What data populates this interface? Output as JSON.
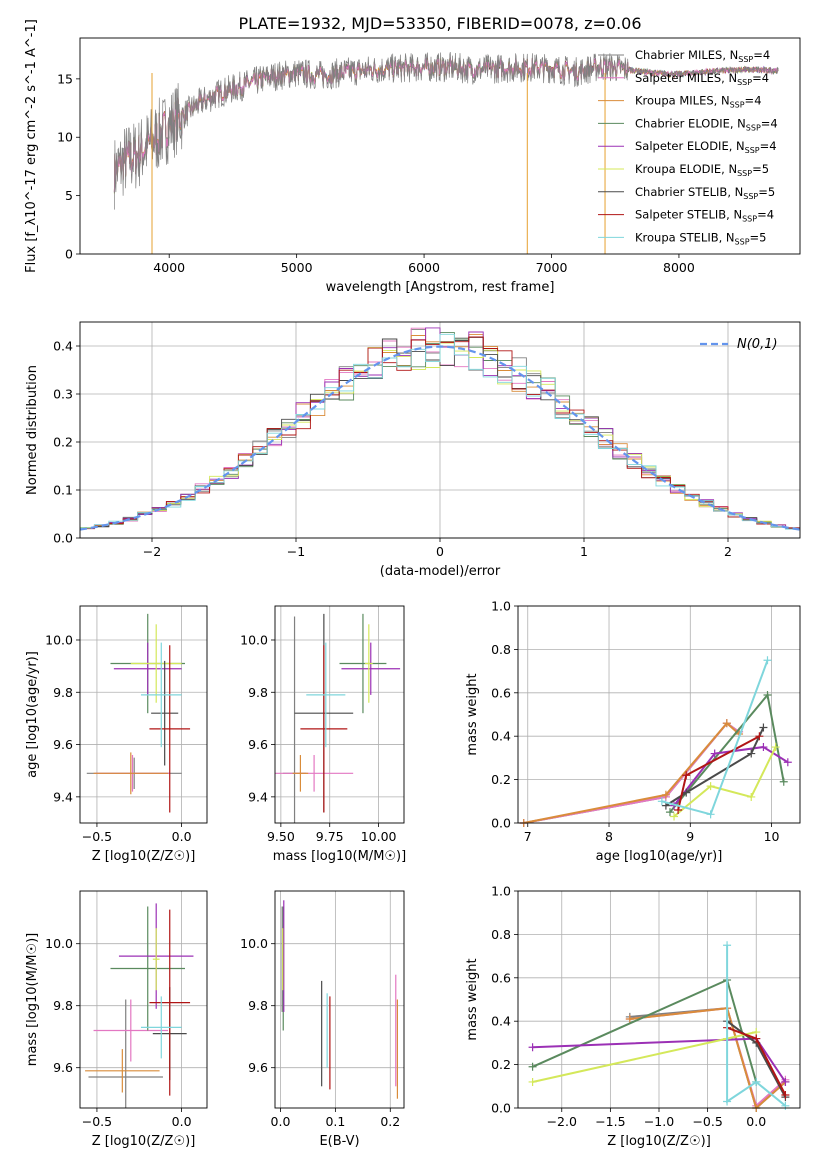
{
  "figure": {
    "title": "PLATE=1932, MJD=53350, FIBERID=0078, z=0.06"
  },
  "models": [
    {
      "name": "Chabrier MILES",
      "nssp": "4",
      "color": "#808080"
    },
    {
      "name": "Salpeter MILES",
      "nssp": "4",
      "color": "#e377c2"
    },
    {
      "name": "Kroupa MILES",
      "nssp": "4",
      "color": "#d98c3a"
    },
    {
      "name": "Chabrier ELODIE",
      "nssp": "4",
      "color": "#5a8a5e"
    },
    {
      "name": "Salpeter ELODIE",
      "nssp": "4",
      "color": "#9b30b5"
    },
    {
      "name": "Kroupa ELODIE",
      "nssp": "5",
      "color": "#d4e85a"
    },
    {
      "name": "Chabrier STELIB",
      "nssp": "5",
      "color": "#4a4a4a"
    },
    {
      "name": "Salpeter STELIB",
      "nssp": "4",
      "color": "#b01515"
    },
    {
      "name": "Kroupa STELIB",
      "nssp": "5",
      "color": "#7fd6dc"
    }
  ],
  "chart_data": [
    {
      "id": "spectrum",
      "type": "line",
      "xlabel": "wavelength [Angstrom, rest frame]",
      "ylabel": "Flux [f_λ10^-17 erg cm^-2 s^-1 A^-1]",
      "xlim": [
        3300,
        8950
      ],
      "ylim": [
        0,
        18.5
      ],
      "xticks": [
        4000,
        5000,
        6000,
        7000,
        8000
      ],
      "yticks": [
        0,
        5,
        10,
        15
      ],
      "grid": false,
      "legend": "upper right",
      "spectrum_shape": {
        "x": [
          3570,
          3650,
          3750,
          3850,
          3950,
          4050,
          4150,
          4250,
          4400,
          4600,
          4800,
          5000,
          5200,
          5400,
          5600,
          5800,
          6000,
          6200,
          6400,
          6600,
          6800,
          7000,
          7200,
          7400,
          7600,
          7800,
          8000,
          8200,
          8500,
          8800
        ],
        "y": [
          7.0,
          8.0,
          8.5,
          9.5,
          10.5,
          11.5,
          12.2,
          13.0,
          13.8,
          14.5,
          15.2,
          15.5,
          15.3,
          15.6,
          15.8,
          15.9,
          16.0,
          16.0,
          15.8,
          15.9,
          16.0,
          15.9,
          15.6,
          16.1,
          15.8,
          15.5,
          15.4,
          15.6,
          15.8,
          15.7
        ]
      }
    },
    {
      "id": "residuals",
      "type": "line",
      "xlabel": "(data-model)/error",
      "ylabel": "Normed distribution",
      "xlim": [
        -2.5,
        2.5
      ],
      "ylim": [
        0,
        0.45
      ],
      "xticks": [
        -2,
        -1,
        0,
        1,
        2
      ],
      "yticks": [
        0.0,
        0.1,
        0.2,
        0.3,
        0.4
      ],
      "grid": true,
      "legend": "upper right",
      "reference_label": "N(0,1)",
      "reference_color": "#6495ed"
    },
    {
      "id": "age-vs-Z",
      "type": "scatter",
      "xlabel": "Z [log10(Z/Z☉)]",
      "ylabel": "age [log10(age/yr)]",
      "xlim": [
        -0.6,
        0.15
      ],
      "ylim": [
        9.3,
        10.13
      ],
      "xticks": [
        -0.5,
        0.0
      ],
      "yticks": [
        9.4,
        9.6,
        9.8,
        10.0
      ],
      "points": [
        {
          "x": -0.28,
          "y": 9.49,
          "xerr": 0.28,
          "yerr": 0.06,
          "model": 0
        },
        {
          "x": -0.29,
          "y": 9.49,
          "xerr": 0.22,
          "yerr": 0.07,
          "model": 1
        },
        {
          "x": -0.3,
          "y": 9.49,
          "xerr": 0.22,
          "yerr": 0.08,
          "model": 2
        },
        {
          "x": -0.2,
          "y": 9.91,
          "xerr": 0.22,
          "yerr": 0.19,
          "model": 3
        },
        {
          "x": -0.2,
          "y": 9.89,
          "xerr": 0.2,
          "yerr": 0.1,
          "model": 4
        },
        {
          "x": -0.15,
          "y": 9.91,
          "xerr": 0.15,
          "yerr": 0.15,
          "model": 5
        },
        {
          "x": -0.1,
          "y": 9.72,
          "xerr": 0.08,
          "yerr": 0.2,
          "model": 6
        },
        {
          "x": -0.07,
          "y": 9.66,
          "xerr": 0.12,
          "yerr": 0.32,
          "model": 7
        },
        {
          "x": -0.12,
          "y": 9.79,
          "xerr": 0.12,
          "yerr": 0.2,
          "model": 8
        }
      ]
    },
    {
      "id": "age-vs-mass",
      "type": "scatter",
      "xlabel": "mass [log10(M/M☉)]",
      "ylabel": "",
      "xlim": [
        9.47,
        10.13
      ],
      "ylim": [
        9.3,
        10.13
      ],
      "xticks": [
        9.5,
        9.75,
        10.0
      ],
      "yticks": [
        9.4,
        9.6,
        9.8,
        10.0
      ],
      "points": [
        {
          "x": 9.57,
          "y": 9.49,
          "xerr": 0.06,
          "yerr": 0.6,
          "model": 0
        },
        {
          "x": 9.67,
          "y": 9.49,
          "xerr": 0.2,
          "yerr": 0.07,
          "model": 1
        },
        {
          "x": 9.6,
          "y": 9.49,
          "xerr": 0.04,
          "yerr": 0.07,
          "model": 2
        },
        {
          "x": 9.92,
          "y": 9.91,
          "xerr": 0.12,
          "yerr": 0.19,
          "model": 3
        },
        {
          "x": 9.96,
          "y": 9.89,
          "xerr": 0.15,
          "yerr": 0.1,
          "model": 4
        },
        {
          "x": 9.95,
          "y": 9.91,
          "xerr": 0.02,
          "yerr": 0.15,
          "model": 5
        },
        {
          "x": 9.72,
          "y": 9.72,
          "xerr": 0.15,
          "yerr": 0.38,
          "model": 6
        },
        {
          "x": 9.72,
          "y": 9.66,
          "xerr": 0.12,
          "yerr": 0.32,
          "model": 7
        },
        {
          "x": 9.73,
          "y": 9.79,
          "xerr": 0.1,
          "yerr": 0.2,
          "model": 8
        }
      ]
    },
    {
      "id": "weight-vs-age",
      "type": "line",
      "xlabel": "age [log10(age/yr)]",
      "ylabel": "mass weight",
      "xlim": [
        6.88,
        10.35
      ],
      "ylim": [
        0,
        1
      ],
      "xticks": [
        7,
        8,
        9,
        10
      ],
      "yticks": [
        0.0,
        0.2,
        0.4,
        0.6,
        0.8,
        1.0
      ],
      "series": [
        {
          "model": 0,
          "x": [
            6.95,
            8.7,
            9.45,
            9.6
          ],
          "y": [
            0.0,
            0.12,
            0.46,
            0.42
          ]
        },
        {
          "model": 1,
          "x": [
            6.95,
            8.7,
            9.45,
            9.6
          ],
          "y": [
            0.0,
            0.12,
            0.46,
            0.42
          ]
        },
        {
          "model": 2,
          "x": [
            6.95,
            8.7,
            9.45,
            9.6
          ],
          "y": [
            0.0,
            0.13,
            0.46,
            0.41
          ]
        },
        {
          "model": 3,
          "x": [
            8.75,
            9.95,
            10.15
          ],
          "y": [
            0.05,
            0.59,
            0.19
          ]
        },
        {
          "model": 4,
          "x": [
            8.8,
            9.3,
            9.9,
            10.2
          ],
          "y": [
            0.08,
            0.32,
            0.35,
            0.28
          ]
        },
        {
          "model": 5,
          "x": [
            8.8,
            9.25,
            9.75,
            10.05
          ],
          "y": [
            0.03,
            0.17,
            0.12,
            0.35
          ]
        },
        {
          "model": 6,
          "x": [
            8.7,
            8.95,
            9.75,
            9.9
          ],
          "y": [
            0.08,
            0.14,
            0.32,
            0.44
          ]
        },
        {
          "model": 7,
          "x": [
            8.85,
            8.95,
            9.85
          ],
          "y": [
            0.06,
            0.22,
            0.4
          ]
        },
        {
          "model": 8,
          "x": [
            8.65,
            9.25,
            9.95
          ],
          "y": [
            0.1,
            0.04,
            0.75
          ]
        }
      ]
    },
    {
      "id": "mass-vs-Z",
      "type": "scatter",
      "xlabel": "Z [log10(Z/Z☉)]",
      "ylabel": "mass [log10(M/M☉)]",
      "xlim": [
        -0.6,
        0.15
      ],
      "ylim": [
        9.47,
        10.17
      ],
      "xticks": [
        -0.5,
        0.0
      ],
      "yticks": [
        9.6,
        9.8,
        10.0
      ],
      "points": [
        {
          "x": -0.33,
          "y": 9.57,
          "xerr": 0.22,
          "yerr": 0.25,
          "model": 0
        },
        {
          "x": -0.3,
          "y": 9.72,
          "xerr": 0.22,
          "yerr": 0.1,
          "model": 1
        },
        {
          "x": -0.35,
          "y": 9.59,
          "xerr": 0.22,
          "yerr": 0.07,
          "model": 2
        },
        {
          "x": -0.2,
          "y": 9.92,
          "xerr": 0.22,
          "yerr": 0.2,
          "model": 3
        },
        {
          "x": -0.15,
          "y": 9.96,
          "xerr": 0.22,
          "yerr": 0.17,
          "model": 4
        },
        {
          "x": -0.15,
          "y": 9.95,
          "xerr": 0.02,
          "yerr": 0.1,
          "model": 5
        },
        {
          "x": -0.07,
          "y": 9.71,
          "xerr": 0.1,
          "yerr": 0.15,
          "model": 6
        },
        {
          "x": -0.07,
          "y": 9.81,
          "xerr": 0.12,
          "yerr": 0.3,
          "model": 7
        },
        {
          "x": -0.12,
          "y": 9.73,
          "xerr": 0.12,
          "yerr": 0.1,
          "model": 8
        }
      ]
    },
    {
      "id": "mass-vs-ebv",
      "type": "scatter",
      "xlabel": "E(B-V)",
      "ylabel": "",
      "xlim": [
        -0.01,
        0.225
      ],
      "ylim": [
        9.47,
        10.17
      ],
      "xticks": [
        0.0,
        0.1,
        0.2
      ],
      "yticks": [
        9.6,
        9.8,
        10.0
      ],
      "points": [
        {
          "x": 0.003,
          "y": 9.95,
          "xerr": 0.0,
          "yerr": 0.17,
          "model": 0
        },
        {
          "x": 0.21,
          "y": 9.72,
          "xerr": 0.0,
          "yerr": 0.18,
          "model": 1
        },
        {
          "x": 0.213,
          "y": 9.66,
          "xerr": 0.0,
          "yerr": 0.16,
          "model": 2
        },
        {
          "x": 0.005,
          "y": 9.92,
          "xerr": 0.0,
          "yerr": 0.2,
          "model": 3
        },
        {
          "x": 0.006,
          "y": 9.96,
          "xerr": 0.0,
          "yerr": 0.18,
          "model": 4
        },
        {
          "x": 0.004,
          "y": 9.95,
          "xerr": 0.0,
          "yerr": 0.1,
          "model": 5
        },
        {
          "x": 0.075,
          "y": 9.71,
          "xerr": 0.0,
          "yerr": 0.17,
          "model": 6
        },
        {
          "x": 0.09,
          "y": 9.68,
          "xerr": 0.0,
          "yerr": 0.15,
          "model": 7
        },
        {
          "x": 0.085,
          "y": 9.72,
          "xerr": 0.0,
          "yerr": 0.12,
          "model": 8
        }
      ]
    },
    {
      "id": "weight-vs-Z",
      "type": "line",
      "xlabel": "Z [log10(Z/Z☉)]",
      "ylabel": "mass weight",
      "xlim": [
        -2.45,
        0.45
      ],
      "ylim": [
        0,
        1
      ],
      "xticks": [
        -2.0,
        -1.5,
        -1.0,
        -0.5,
        0.0
      ],
      "yticks": [
        0.0,
        0.2,
        0.4,
        0.6,
        0.8,
        1.0
      ],
      "series": [
        {
          "model": 0,
          "x": [
            -1.3,
            -0.3,
            0.0,
            0.3
          ],
          "y": [
            0.42,
            0.46,
            0.0,
            0.12
          ]
        },
        {
          "model": 1,
          "x": [
            -1.3,
            -0.3,
            0.0,
            0.3
          ],
          "y": [
            0.41,
            0.46,
            0.01,
            0.13
          ]
        },
        {
          "model": 2,
          "x": [
            -1.3,
            -0.3,
            0.0,
            0.3
          ],
          "y": [
            0.41,
            0.46,
            0.0,
            0.12
          ]
        },
        {
          "model": 3,
          "x": [
            -2.3,
            -0.3,
            0.0
          ],
          "y": [
            0.19,
            0.59,
            0.12
          ]
        },
        {
          "model": 4,
          "x": [
            -2.3,
            0.0,
            0.3
          ],
          "y": [
            0.28,
            0.32,
            0.12
          ]
        },
        {
          "model": 5,
          "x": [
            -2.3,
            -0.3,
            0.0
          ],
          "y": [
            0.12,
            0.32,
            0.35
          ]
        },
        {
          "model": 6,
          "x": [
            -0.3,
            0.0,
            0.3
          ],
          "y": [
            0.4,
            0.3,
            0.05
          ]
        },
        {
          "model": 7,
          "x": [
            -0.3,
            0.0,
            0.3
          ],
          "y": [
            0.37,
            0.32,
            0.06
          ]
        },
        {
          "model": 8,
          "x": [
            -0.3,
            -0.3,
            0.0,
            0.3
          ],
          "y": [
            0.75,
            0.03,
            0.12,
            0.01
          ]
        }
      ]
    }
  ]
}
